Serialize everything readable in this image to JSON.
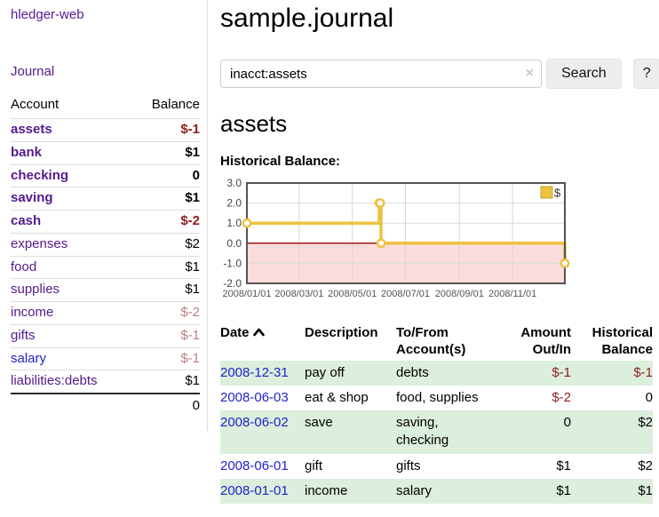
{
  "sidebar": {
    "brand": "hledger-web",
    "journal_link": "Journal",
    "accounts": {
      "col_account": "Account",
      "col_balance": "Balance",
      "rows": [
        {
          "name": "assets",
          "indent": 1,
          "matched": true,
          "balance": "$-1",
          "bal": "neg"
        },
        {
          "name": "bank",
          "indent": 2,
          "matched": true,
          "balance": "$1",
          "bal": "pos"
        },
        {
          "name": "checking",
          "indent": 3,
          "matched": true,
          "balance": "0",
          "bal": "pos"
        },
        {
          "name": "saving",
          "indent": 3,
          "matched": true,
          "balance": "$1",
          "bal": "pos"
        },
        {
          "name": "cash",
          "indent": 2,
          "matched": true,
          "balance": "$-2",
          "bal": "neg"
        },
        {
          "name": "expenses",
          "indent": 1,
          "matched": false,
          "balance": "$2",
          "bal": "plain"
        },
        {
          "name": "food",
          "indent": 2,
          "matched": false,
          "balance": "$1",
          "bal": "plain"
        },
        {
          "name": "supplies",
          "indent": 2,
          "matched": false,
          "balance": "$1",
          "bal": "plain"
        },
        {
          "name": "income",
          "indent": 1,
          "matched": false,
          "balance": "$-2",
          "bal": "dimneg"
        },
        {
          "name": "gifts",
          "indent": 2,
          "matched": false,
          "balance": "$-1",
          "bal": "dimneg"
        },
        {
          "name": "salary",
          "indent": 2,
          "matched": false,
          "link": "blue",
          "balance": "$-1",
          "bal": "dimneg"
        },
        {
          "name": "liabilities:debts",
          "indent": 1,
          "matched": false,
          "balance": "$1",
          "bal": "plain"
        }
      ],
      "total": "0"
    }
  },
  "header": {
    "title": "sample.journal"
  },
  "search": {
    "value": "inacct:assets",
    "clear_icon": "×",
    "button": "Search",
    "help": "?"
  },
  "account_page": {
    "heading": "assets",
    "chart_heading": "Historical Balance:"
  },
  "chart_data": {
    "type": "line",
    "step": true,
    "title": "Historical Balance:",
    "x_range": [
      "2008-01-01",
      "2008-12-31"
    ],
    "ylim": [
      -2.0,
      3.0
    ],
    "yticks": [
      3.0,
      2.0,
      1.0,
      0.0,
      -1.0,
      -2.0
    ],
    "xticks": [
      "2008/01/01",
      "2008/03/01",
      "2008/05/01",
      "2008/07/01",
      "2008/09/01",
      "2008/11/01"
    ],
    "grid": true,
    "legend_position": "top-right",
    "series": [
      {
        "name": "$",
        "color": "#edc240",
        "points": [
          [
            "2008-01-01",
            1
          ],
          [
            "2008-06-01",
            2
          ],
          [
            "2008-06-02",
            2
          ],
          [
            "2008-06-03",
            0
          ],
          [
            "2008-12-31",
            -1
          ]
        ]
      }
    ],
    "negative_region": {
      "fill": "#fbdcdc",
      "zero_line": "#9e1a1a"
    }
  },
  "register": {
    "columns": [
      "Date",
      "Description",
      "To/From Account(s)",
      "Amount Out/In",
      "Historical Balance"
    ],
    "sort_indicator": "ascending",
    "rows": [
      {
        "date": "2008-12-31",
        "description": "pay off",
        "accounts": "debts",
        "amount": "$-1",
        "amount_neg": true,
        "balance": "$-1",
        "balance_neg": true
      },
      {
        "date": "2008-06-03",
        "description": "eat & shop",
        "accounts": "food, supplies",
        "amount": "$-2",
        "amount_neg": true,
        "balance": "0",
        "balance_neg": false
      },
      {
        "date": "2008-06-02",
        "description": "save",
        "accounts": "saving, checking",
        "amount": "0",
        "amount_neg": false,
        "balance": "$2",
        "balance_neg": false
      },
      {
        "date": "2008-06-01",
        "description": "gift",
        "accounts": "gifts",
        "amount": "$1",
        "amount_neg": false,
        "balance": "$2",
        "balance_neg": false
      },
      {
        "date": "2008-01-01",
        "description": "income",
        "accounts": "salary",
        "amount": "$1",
        "amount_neg": false,
        "balance": "$1",
        "balance_neg": false
      }
    ]
  },
  "colors": {
    "link_purple": "#551a8b",
    "link_blue": "#2222cc",
    "negative": "#8f1d1d",
    "negative_dim": "#bb7f7f",
    "row_green": "#dceedc",
    "chart_line": "#edc240",
    "chart_border": "#545454",
    "negative_fill": "#fbdcdc",
    "zero_line": "#9e1a1a"
  }
}
